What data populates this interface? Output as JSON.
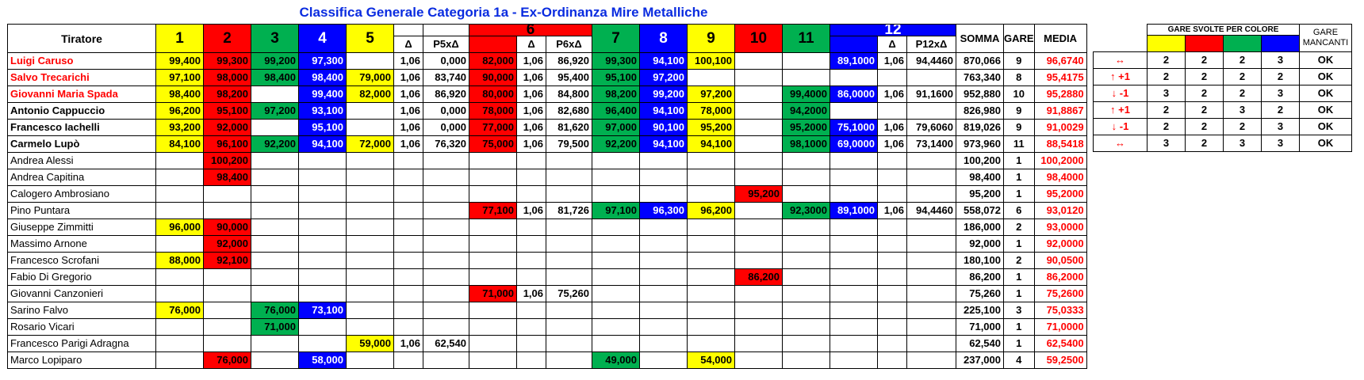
{
  "title": "Classifica Generale Categoria 1a - Ex-Ordinanza Mire Metalliche",
  "headers": {
    "tiratore": "Tiratore",
    "g1": "1",
    "g2": "2",
    "g3": "3",
    "g4": "4",
    "g5": "5",
    "delta": "Δ",
    "p5": "P5xΔ",
    "g6": "6",
    "p6": "P6xΔ",
    "g7": "7",
    "g8": "8",
    "g9": "9",
    "g10": "10",
    "g11": "11",
    "g12": "12",
    "p12": "P12xΔ",
    "somma": "SOMMA",
    "gare": "GARE",
    "media": "MEDIA",
    "gare_svolte": "GARE SVOLTE PER COLORE",
    "gare_mancanti": "GARE MANCANTI"
  },
  "colors": {
    "yellow": "#ffff00",
    "red": "#ff0000",
    "green": "#00b050",
    "blue": "#0000ff"
  },
  "rows": [
    {
      "name": "Luigi Caruso",
      "g1": "99,400",
      "g2": "99,300",
      "g3": "99,200",
      "g4": "97,300",
      "g5": "",
      "d5": "1,06",
      "p5": "0,000",
      "g6": "82,000",
      "d6": "1,06",
      "p6": "86,920",
      "g7": "99,300",
      "g8": "94,100",
      "g9": "100,100",
      "g10": "",
      "g11": "",
      "g12": "89,1000",
      "d12": "1,06",
      "p12": "94,4460",
      "somma": "870,066",
      "gare": "9",
      "media": "96,6740",
      "trend": "↔",
      "cy": "2",
      "cr": "2",
      "cg": "2",
      "cb": "3",
      "mancanti": "OK"
    },
    {
      "name": "Salvo Trecarichi",
      "g1": "97,100",
      "g2": "98,000",
      "g3": "98,400",
      "g4": "98,400",
      "g5": "79,000",
      "d5": "1,06",
      "p5": "83,740",
      "g6": "90,000",
      "d6": "1,06",
      "p6": "95,400",
      "g7": "95,100",
      "g8": "97,200",
      "g9": "",
      "g10": "",
      "g11": "",
      "g12": "",
      "d12": "",
      "p12": "",
      "somma": "763,340",
      "gare": "8",
      "media": "95,4175",
      "trend": "↑ +1",
      "cy": "2",
      "cr": "2",
      "cg": "2",
      "cb": "2",
      "mancanti": "OK"
    },
    {
      "name": "Giovanni Maria Spada",
      "g1": "98,400",
      "g2": "98,200",
      "g3": "",
      "g4": "99,400",
      "g5": "82,000",
      "d5": "1,06",
      "p5": "86,920",
      "g6": "80,000",
      "d6": "1,06",
      "p6": "84,800",
      "g7": "98,200",
      "g8": "99,200",
      "g9": "97,200",
      "g10": "",
      "g11": "99,4000",
      "g12": "86,0000",
      "d12": "1,06",
      "p12": "91,1600",
      "somma": "952,880",
      "gare": "10",
      "media": "95,2880",
      "trend": "↓ -1",
      "cy": "3",
      "cr": "2",
      "cg": "2",
      "cb": "3",
      "mancanti": "OK"
    },
    {
      "name": "Antonio Cappuccio",
      "g1": "96,200",
      "g2": "95,100",
      "g3": "97,200",
      "g4": "93,100",
      "g5": "",
      "d5": "1,06",
      "p5": "0,000",
      "g6": "78,000",
      "d6": "1,06",
      "p6": "82,680",
      "g7": "96,400",
      "g8": "94,100",
      "g9": "78,000",
      "g10": "",
      "g11": "94,2000",
      "g12": "",
      "d12": "",
      "p12": "",
      "somma": "826,980",
      "gare": "9",
      "media": "91,8867",
      "trend": "↑ +1",
      "cy": "2",
      "cr": "2",
      "cg": "3",
      "cb": "2",
      "mancanti": "OK"
    },
    {
      "name": "Francesco Iachelli",
      "g1": "93,200",
      "g2": "92,000",
      "g3": "",
      "g4": "95,100",
      "g5": "",
      "d5": "1,06",
      "p5": "0,000",
      "g6": "77,000",
      "d6": "1,06",
      "p6": "81,620",
      "g7": "97,000",
      "g8": "90,100",
      "g9": "95,200",
      "g10": "",
      "g11": "95,2000",
      "g12": "75,1000",
      "d12": "1,06",
      "p12": "79,6060",
      "somma": "819,026",
      "gare": "9",
      "media": "91,0029",
      "trend": "↓ -1",
      "cy": "2",
      "cr": "2",
      "cg": "2",
      "cb": "3",
      "mancanti": "OK"
    },
    {
      "name": "Carmelo Lupò",
      "g1": "84,100",
      "g2": "96,100",
      "g3": "92,200",
      "g4": "94,100",
      "g5": "72,000",
      "d5": "1,06",
      "p5": "76,320",
      "g6": "75,000",
      "d6": "1,06",
      "p6": "79,500",
      "g7": "92,200",
      "g8": "94,100",
      "g9": "94,100",
      "g10": "",
      "g11": "98,1000",
      "g12": "69,0000",
      "d12": "1,06",
      "p12": "73,1400",
      "somma": "973,960",
      "gare": "11",
      "media": "88,5418",
      "trend": "↔",
      "cy": "3",
      "cr": "2",
      "cg": "3",
      "cb": "3",
      "mancanti": "OK"
    },
    {
      "name": "Andrea Alessi",
      "g1": "",
      "g2": "100,200",
      "g3": "",
      "g4": "",
      "g5": "",
      "d5": "",
      "p5": "",
      "g6": "",
      "d6": "",
      "p6": "",
      "g7": "",
      "g8": "",
      "g9": "",
      "g10": "",
      "g11": "",
      "g12": "",
      "d12": "",
      "p12": "",
      "somma": "100,200",
      "gare": "1",
      "media": "100,2000"
    },
    {
      "name": "Andrea Capitina",
      "g1": "",
      "g2": "98,400",
      "g3": "",
      "g4": "",
      "g5": "",
      "d5": "",
      "p5": "",
      "g6": "",
      "d6": "",
      "p6": "",
      "g7": "",
      "g8": "",
      "g9": "",
      "g10": "",
      "g11": "",
      "g12": "",
      "d12": "",
      "p12": "",
      "somma": "98,400",
      "gare": "1",
      "media": "98,4000"
    },
    {
      "name": "Calogero Ambrosiano",
      "g1": "",
      "g2": "",
      "g3": "",
      "g4": "",
      "g5": "",
      "d5": "",
      "p5": "",
      "g6": "",
      "d6": "",
      "p6": "",
      "g7": "",
      "g8": "",
      "g9": "",
      "g10": "95,200",
      "g11": "",
      "g12": "",
      "d12": "",
      "p12": "",
      "somma": "95,200",
      "gare": "1",
      "media": "95,2000"
    },
    {
      "name": "Pino Puntara",
      "g1": "",
      "g2": "",
      "g3": "",
      "g4": "",
      "g5": "",
      "d5": "",
      "p5": "",
      "g6": "77,100",
      "d6": "1,06",
      "p6": "81,726",
      "g7": "97,100",
      "g8": "96,300",
      "g9": "96,200",
      "g10": "",
      "g11": "92,3000",
      "g12": "89,1000",
      "d12": "1,06",
      "p12": "94,4460",
      "somma": "558,072",
      "gare": "6",
      "media": "93,0120"
    },
    {
      "name": "Giuseppe Zimmitti",
      "g1": "96,000",
      "g2": "90,000",
      "g3": "",
      "g4": "",
      "g5": "",
      "d5": "",
      "p5": "",
      "g6": "",
      "d6": "",
      "p6": "",
      "g7": "",
      "g8": "",
      "g9": "",
      "g10": "",
      "g11": "",
      "g12": "",
      "d12": "",
      "p12": "",
      "somma": "186,000",
      "gare": "2",
      "media": "93,0000"
    },
    {
      "name": "Massimo Arnone",
      "g1": "",
      "g2": "92,000",
      "g3": "",
      "g4": "",
      "g5": "",
      "d5": "",
      "p5": "",
      "g6": "",
      "d6": "",
      "p6": "",
      "g7": "",
      "g8": "",
      "g9": "",
      "g10": "",
      "g11": "",
      "g12": "",
      "d12": "",
      "p12": "",
      "somma": "92,000",
      "gare": "1",
      "media": "92,0000"
    },
    {
      "name": "Francesco Scrofani",
      "g1": "88,000",
      "g2": "92,100",
      "g3": "",
      "g4": "",
      "g5": "",
      "d5": "",
      "p5": "",
      "g6": "",
      "d6": "",
      "p6": "",
      "g7": "",
      "g8": "",
      "g9": "",
      "g10": "",
      "g11": "",
      "g12": "",
      "d12": "",
      "p12": "",
      "somma": "180,100",
      "gare": "2",
      "media": "90,0500"
    },
    {
      "name": "Fabio Di Gregorio",
      "g1": "",
      "g2": "",
      "g3": "",
      "g4": "",
      "g5": "",
      "d5": "",
      "p5": "",
      "g6": "",
      "d6": "",
      "p6": "",
      "g7": "",
      "g8": "",
      "g9": "",
      "g10": "86,200",
      "g11": "",
      "g12": "",
      "d12": "",
      "p12": "",
      "somma": "86,200",
      "gare": "1",
      "media": "86,2000"
    },
    {
      "name": "Giovanni Canzonieri",
      "g1": "",
      "g2": "",
      "g3": "",
      "g4": "",
      "g5": "",
      "d5": "",
      "p5": "",
      "g6": "71,000",
      "d6": "1,06",
      "p6": "75,260",
      "g7": "",
      "g8": "",
      "g9": "",
      "g10": "",
      "g11": "",
      "g12": "",
      "d12": "",
      "p12": "",
      "somma": "75,260",
      "gare": "1",
      "media": "75,2600"
    },
    {
      "name": "Sarino Falvo",
      "g1": "76,000",
      "g2": "",
      "g3": "76,000",
      "g4": "73,100",
      "g5": "",
      "d5": "",
      "p5": "",
      "g6": "",
      "d6": "",
      "p6": "",
      "g7": "",
      "g8": "",
      "g9": "",
      "g10": "",
      "g11": "",
      "g12": "",
      "d12": "",
      "p12": "",
      "somma": "225,100",
      "gare": "3",
      "media": "75,0333"
    },
    {
      "name": "Rosario Vicari",
      "g1": "",
      "g2": "",
      "g3": "71,000",
      "g4": "",
      "g5": "",
      "d5": "",
      "p5": "",
      "g6": "",
      "d6": "",
      "p6": "",
      "g7": "",
      "g8": "",
      "g9": "",
      "g10": "",
      "g11": "",
      "g12": "",
      "d12": "",
      "p12": "",
      "somma": "71,000",
      "gare": "1",
      "media": "71,0000"
    },
    {
      "name": "Francesco Parigi Adragna",
      "g1": "",
      "g2": "",
      "g3": "",
      "g4": "",
      "g5": "59,000",
      "d5": "1,06",
      "p5": "62,540",
      "g6": "",
      "d6": "",
      "p6": "",
      "g7": "",
      "g8": "",
      "g9": "",
      "g10": "",
      "g11": "",
      "g12": "",
      "d12": "",
      "p12": "",
      "somma": "62,540",
      "gare": "1",
      "media": "62,5400"
    },
    {
      "name": "Marco Lopiparo",
      "g1": "",
      "g2": "76,000",
      "g3": "",
      "g4": "58,000",
      "g5": "",
      "d5": "",
      "p5": "",
      "g6": "",
      "d6": "",
      "p6": "",
      "g7": "49,000",
      "g8": "",
      "g9": "54,000",
      "g10": "",
      "g11": "",
      "g12": "",
      "d12": "",
      "p12": "",
      "somma": "237,000",
      "gare": "4",
      "media": "59,2500"
    }
  ]
}
